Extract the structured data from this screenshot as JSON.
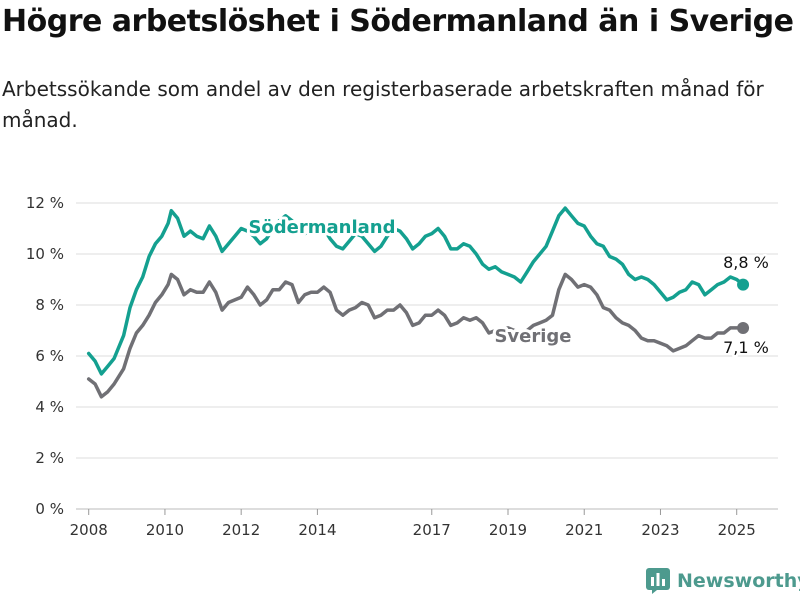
{
  "title": "Högre arbetslöshet i Södermanland än i Sverige",
  "subtitle": "Arbetssökande som andel av den registerbaserade arbetskraften månad för månad.",
  "brand": {
    "name": "Newsworthy"
  },
  "colors": {
    "sodermanland": "#14a090",
    "sverige": "#707075",
    "grid": "#dddddd"
  },
  "chart_data": {
    "type": "line",
    "x_ticks": [
      "2008",
      "2010",
      "2012",
      "2014",
      "2017",
      "2019",
      "2021",
      "2023",
      "2025"
    ],
    "y_ticks": [
      "0 %",
      "2 %",
      "4 %",
      "6 %",
      "8 %",
      "10 %",
      "12 %"
    ],
    "ylim": [
      0,
      12
    ],
    "xlim": [
      "2007-09",
      "2026-02"
    ],
    "grid": "horizontal",
    "series": [
      {
        "name": "Södermanland",
        "end_label": "8,8 %",
        "points": [
          [
            "2008-01",
            6.1
          ],
          [
            "2008-03",
            5.8
          ],
          [
            "2008-05",
            5.3
          ],
          [
            "2008-07",
            5.6
          ],
          [
            "2008-09",
            5.9
          ],
          [
            "2008-12",
            6.8
          ],
          [
            "2009-02",
            7.9
          ],
          [
            "2009-04",
            8.6
          ],
          [
            "2009-06",
            9.1
          ],
          [
            "2009-08",
            9.9
          ],
          [
            "2009-10",
            10.4
          ],
          [
            "2009-12",
            10.7
          ],
          [
            "2010-02",
            11.2
          ],
          [
            "2010-03",
            11.7
          ],
          [
            "2010-05",
            11.4
          ],
          [
            "2010-07",
            10.7
          ],
          [
            "2010-09",
            10.9
          ],
          [
            "2010-11",
            10.7
          ],
          [
            "2011-01",
            10.6
          ],
          [
            "2011-03",
            11.1
          ],
          [
            "2011-05",
            10.7
          ],
          [
            "2011-07",
            10.1
          ],
          [
            "2011-09",
            10.4
          ],
          [
            "2011-11",
            10.7
          ],
          [
            "2012-01",
            11.0
          ],
          [
            "2012-03",
            10.9
          ],
          [
            "2012-05",
            10.7
          ],
          [
            "2012-07",
            10.4
          ],
          [
            "2012-09",
            10.6
          ],
          [
            "2012-11",
            11.0
          ],
          [
            "2013-01",
            11.3
          ],
          [
            "2013-03",
            11.5
          ],
          [
            "2013-05",
            11.3
          ],
          [
            "2013-07",
            11.0
          ],
          [
            "2013-09",
            10.8
          ],
          [
            "2013-11",
            10.9
          ],
          [
            "2014-01",
            11.1
          ],
          [
            "2014-03",
            11.0
          ],
          [
            "2014-05",
            10.6
          ],
          [
            "2014-07",
            10.3
          ],
          [
            "2014-09",
            10.2
          ],
          [
            "2014-11",
            10.5
          ],
          [
            "2015-01",
            10.8
          ],
          [
            "2015-03",
            10.7
          ],
          [
            "2015-05",
            10.4
          ],
          [
            "2015-07",
            10.1
          ],
          [
            "2015-09",
            10.3
          ],
          [
            "2015-11",
            10.7
          ],
          [
            "2016-01",
            11.0
          ],
          [
            "2016-03",
            10.9
          ],
          [
            "2016-05",
            10.6
          ],
          [
            "2016-07",
            10.2
          ],
          [
            "2016-09",
            10.4
          ],
          [
            "2016-11",
            10.7
          ],
          [
            "2017-01",
            10.8
          ],
          [
            "2017-03",
            11.0
          ],
          [
            "2017-05",
            10.7
          ],
          [
            "2017-07",
            10.2
          ],
          [
            "2017-09",
            10.2
          ],
          [
            "2017-11",
            10.4
          ],
          [
            "2018-01",
            10.3
          ],
          [
            "2018-03",
            10.0
          ],
          [
            "2018-05",
            9.6
          ],
          [
            "2018-07",
            9.4
          ],
          [
            "2018-09",
            9.5
          ],
          [
            "2018-11",
            9.3
          ],
          [
            "2019-01",
            9.2
          ],
          [
            "2019-03",
            9.1
          ],
          [
            "2019-05",
            8.9
          ],
          [
            "2019-07",
            9.3
          ],
          [
            "2019-09",
            9.7
          ],
          [
            "2019-11",
            10.0
          ],
          [
            "2020-01",
            10.3
          ],
          [
            "2020-03",
            10.9
          ],
          [
            "2020-05",
            11.5
          ],
          [
            "2020-07",
            11.8
          ],
          [
            "2020-09",
            11.5
          ],
          [
            "2020-11",
            11.2
          ],
          [
            "2021-01",
            11.1
          ],
          [
            "2021-03",
            10.7
          ],
          [
            "2021-05",
            10.4
          ],
          [
            "2021-07",
            10.3
          ],
          [
            "2021-09",
            9.9
          ],
          [
            "2021-11",
            9.8
          ],
          [
            "2022-01",
            9.6
          ],
          [
            "2022-03",
            9.2
          ],
          [
            "2022-05",
            9.0
          ],
          [
            "2022-07",
            9.1
          ],
          [
            "2022-09",
            9.0
          ],
          [
            "2022-11",
            8.8
          ],
          [
            "2023-01",
            8.5
          ],
          [
            "2023-03",
            8.2
          ],
          [
            "2023-05",
            8.3
          ],
          [
            "2023-07",
            8.5
          ],
          [
            "2023-09",
            8.6
          ],
          [
            "2023-11",
            8.9
          ],
          [
            "2024-01",
            8.8
          ],
          [
            "2024-03",
            8.4
          ],
          [
            "2024-05",
            8.6
          ],
          [
            "2024-07",
            8.8
          ],
          [
            "2024-09",
            8.9
          ],
          [
            "2024-11",
            9.1
          ],
          [
            "2025-01",
            9.0
          ],
          [
            "2025-03",
            8.8
          ]
        ]
      },
      {
        "name": "Sverige",
        "end_label": "7,1 %",
        "points": [
          [
            "2008-01",
            5.1
          ],
          [
            "2008-03",
            4.9
          ],
          [
            "2008-05",
            4.4
          ],
          [
            "2008-07",
            4.6
          ],
          [
            "2008-09",
            4.9
          ],
          [
            "2008-12",
            5.5
          ],
          [
            "2009-02",
            6.3
          ],
          [
            "2009-04",
            6.9
          ],
          [
            "2009-06",
            7.2
          ],
          [
            "2009-08",
            7.6
          ],
          [
            "2009-10",
            8.1
          ],
          [
            "2009-12",
            8.4
          ],
          [
            "2010-02",
            8.8
          ],
          [
            "2010-03",
            9.2
          ],
          [
            "2010-05",
            9.0
          ],
          [
            "2010-07",
            8.4
          ],
          [
            "2010-09",
            8.6
          ],
          [
            "2010-11",
            8.5
          ],
          [
            "2011-01",
            8.5
          ],
          [
            "2011-03",
            8.9
          ],
          [
            "2011-05",
            8.5
          ],
          [
            "2011-07",
            7.8
          ],
          [
            "2011-09",
            8.1
          ],
          [
            "2011-11",
            8.2
          ],
          [
            "2012-01",
            8.3
          ],
          [
            "2012-03",
            8.7
          ],
          [
            "2012-05",
            8.4
          ],
          [
            "2012-07",
            8.0
          ],
          [
            "2012-09",
            8.2
          ],
          [
            "2012-11",
            8.6
          ],
          [
            "2013-01",
            8.6
          ],
          [
            "2013-03",
            8.9
          ],
          [
            "2013-05",
            8.8
          ],
          [
            "2013-07",
            8.1
          ],
          [
            "2013-09",
            8.4
          ],
          [
            "2013-11",
            8.5
          ],
          [
            "2014-01",
            8.5
          ],
          [
            "2014-03",
            8.7
          ],
          [
            "2014-05",
            8.5
          ],
          [
            "2014-07",
            7.8
          ],
          [
            "2014-09",
            7.6
          ],
          [
            "2014-11",
            7.8
          ],
          [
            "2015-01",
            7.9
          ],
          [
            "2015-03",
            8.1
          ],
          [
            "2015-05",
            8.0
          ],
          [
            "2015-07",
            7.5
          ],
          [
            "2015-09",
            7.6
          ],
          [
            "2015-11",
            7.8
          ],
          [
            "2016-01",
            7.8
          ],
          [
            "2016-03",
            8.0
          ],
          [
            "2016-05",
            7.7
          ],
          [
            "2016-07",
            7.2
          ],
          [
            "2016-09",
            7.3
          ],
          [
            "2016-11",
            7.6
          ],
          [
            "2017-01",
            7.6
          ],
          [
            "2017-03",
            7.8
          ],
          [
            "2017-05",
            7.6
          ],
          [
            "2017-07",
            7.2
          ],
          [
            "2017-09",
            7.3
          ],
          [
            "2017-11",
            7.5
          ],
          [
            "2018-01",
            7.4
          ],
          [
            "2018-03",
            7.5
          ],
          [
            "2018-05",
            7.3
          ],
          [
            "2018-07",
            6.9
          ],
          [
            "2018-09",
            7.0
          ],
          [
            "2018-11",
            7.0
          ],
          [
            "2019-01",
            7.1
          ],
          [
            "2019-03",
            7.0
          ],
          [
            "2019-05",
            6.8
          ],
          [
            "2019-07",
            7.0
          ],
          [
            "2019-09",
            7.2
          ],
          [
            "2019-11",
            7.3
          ],
          [
            "2020-01",
            7.4
          ],
          [
            "2020-03",
            7.6
          ],
          [
            "2020-05",
            8.6
          ],
          [
            "2020-07",
            9.2
          ],
          [
            "2020-09",
            9.0
          ],
          [
            "2020-11",
            8.7
          ],
          [
            "2021-01",
            8.8
          ],
          [
            "2021-03",
            8.7
          ],
          [
            "2021-05",
            8.4
          ],
          [
            "2021-07",
            7.9
          ],
          [
            "2021-09",
            7.8
          ],
          [
            "2021-11",
            7.5
          ],
          [
            "2022-01",
            7.3
          ],
          [
            "2022-03",
            7.2
          ],
          [
            "2022-05",
            7.0
          ],
          [
            "2022-07",
            6.7
          ],
          [
            "2022-09",
            6.6
          ],
          [
            "2022-11",
            6.6
          ],
          [
            "2023-01",
            6.5
          ],
          [
            "2023-03",
            6.4
          ],
          [
            "2023-05",
            6.2
          ],
          [
            "2023-07",
            6.3
          ],
          [
            "2023-09",
            6.4
          ],
          [
            "2023-11",
            6.6
          ],
          [
            "2024-01",
            6.8
          ],
          [
            "2024-03",
            6.7
          ],
          [
            "2024-05",
            6.7
          ],
          [
            "2024-07",
            6.9
          ],
          [
            "2024-09",
            6.9
          ],
          [
            "2024-11",
            7.1
          ],
          [
            "2025-01",
            7.1
          ],
          [
            "2025-03",
            7.1
          ]
        ]
      }
    ]
  }
}
